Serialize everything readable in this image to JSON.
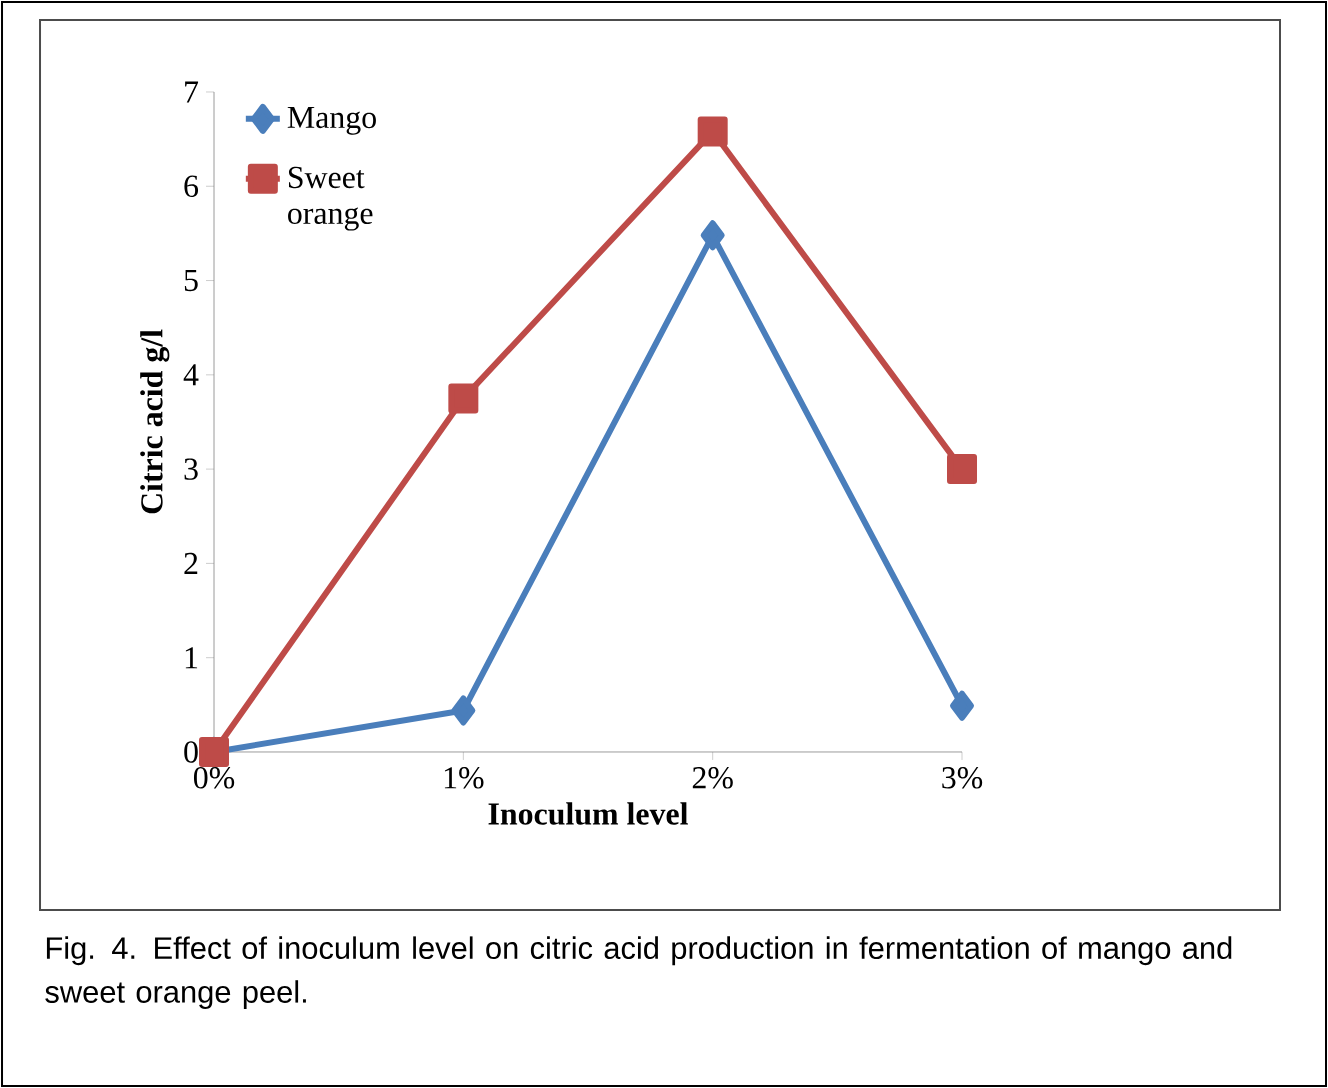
{
  "chart_data": {
    "type": "line",
    "xlabel": "Inoculum level",
    "ylabel": "Citric acid g/l",
    "categories": [
      "0%",
      "1%",
      "2%",
      "3%"
    ],
    "series": [
      {
        "name": "Mango",
        "color": "#4a7ebb",
        "marker": "diamond",
        "values": [
          0,
          0.44,
          5.48,
          0.49
        ]
      },
      {
        "name": "Sweet orange",
        "color": "#be4b48",
        "marker": "square",
        "values": [
          0,
          3.75,
          6.58,
          3.0
        ]
      }
    ],
    "ylim": [
      0,
      7
    ],
    "yticks": [
      0,
      1,
      2,
      3,
      4,
      5,
      6,
      7
    ],
    "grid": false,
    "legend": "top left",
    "annotations": [
      "Fig. 4. Effect of inoculum level on citric acid production in fermentation of mango and sweet orange peel."
    ]
  }
}
